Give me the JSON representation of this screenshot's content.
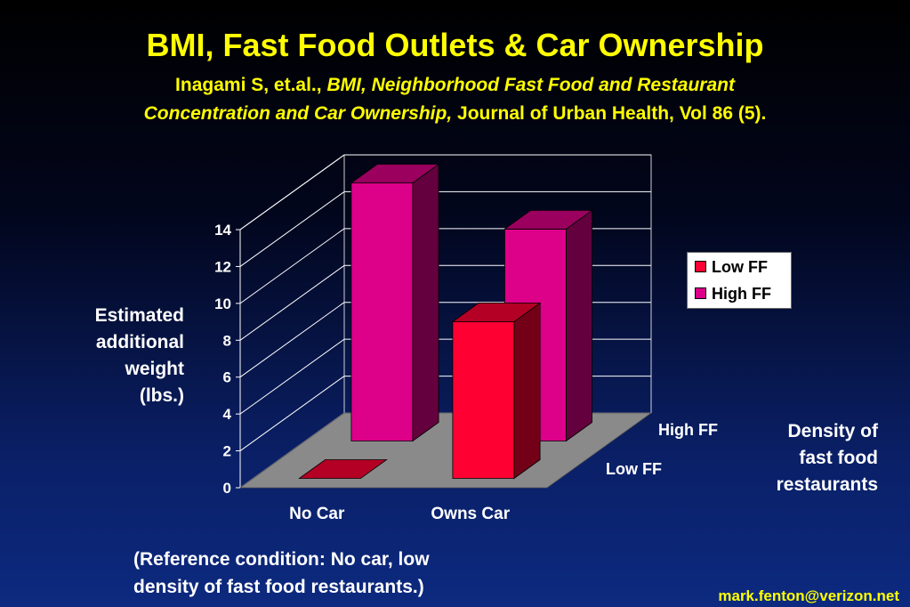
{
  "slide": {
    "title": "BMI, Fast Food Outlets & Car Ownership",
    "citation_authors": "Inagami S, et.al.,",
    "citation_title_line1": "BMI, Neighborhood Fast Food and Restaurant",
    "citation_title_line2": "Concentration and Car Ownership,",
    "citation_journal": "Journal of Urban Health, Vol 86 (5).",
    "density_label": [
      "Density of",
      "fast food",
      "restaurants"
    ],
    "note_line1": "(Reference condition: No car, low",
    "note_line2": "density of fast food restaurants.)",
    "email": "mark.fenton@verizon.net"
  },
  "colors": {
    "title": "#ffff00",
    "low_ff": "#ff0033",
    "high_ff": "#dd0088",
    "floor": "#8a8a8a",
    "wall": "#ffffff"
  },
  "chart_data": {
    "type": "bar",
    "subtype": "3d-grouped",
    "categories": [
      "No Car",
      "Owns Car"
    ],
    "series": [
      {
        "name": "Low FF",
        "values": [
          0,
          8.5
        ]
      },
      {
        "name": "High FF",
        "values": [
          14,
          11.5
        ]
      }
    ],
    "depth_labels": [
      "High FF",
      "Low FF"
    ],
    "ylabel": [
      "Estimated",
      "additional",
      "weight",
      "(lbs.)"
    ],
    "yticks": [
      "0",
      "2",
      "4",
      "6",
      "8",
      "10",
      "12",
      "14"
    ],
    "ylim": [
      0,
      14
    ],
    "grid": true,
    "legend": "right"
  }
}
